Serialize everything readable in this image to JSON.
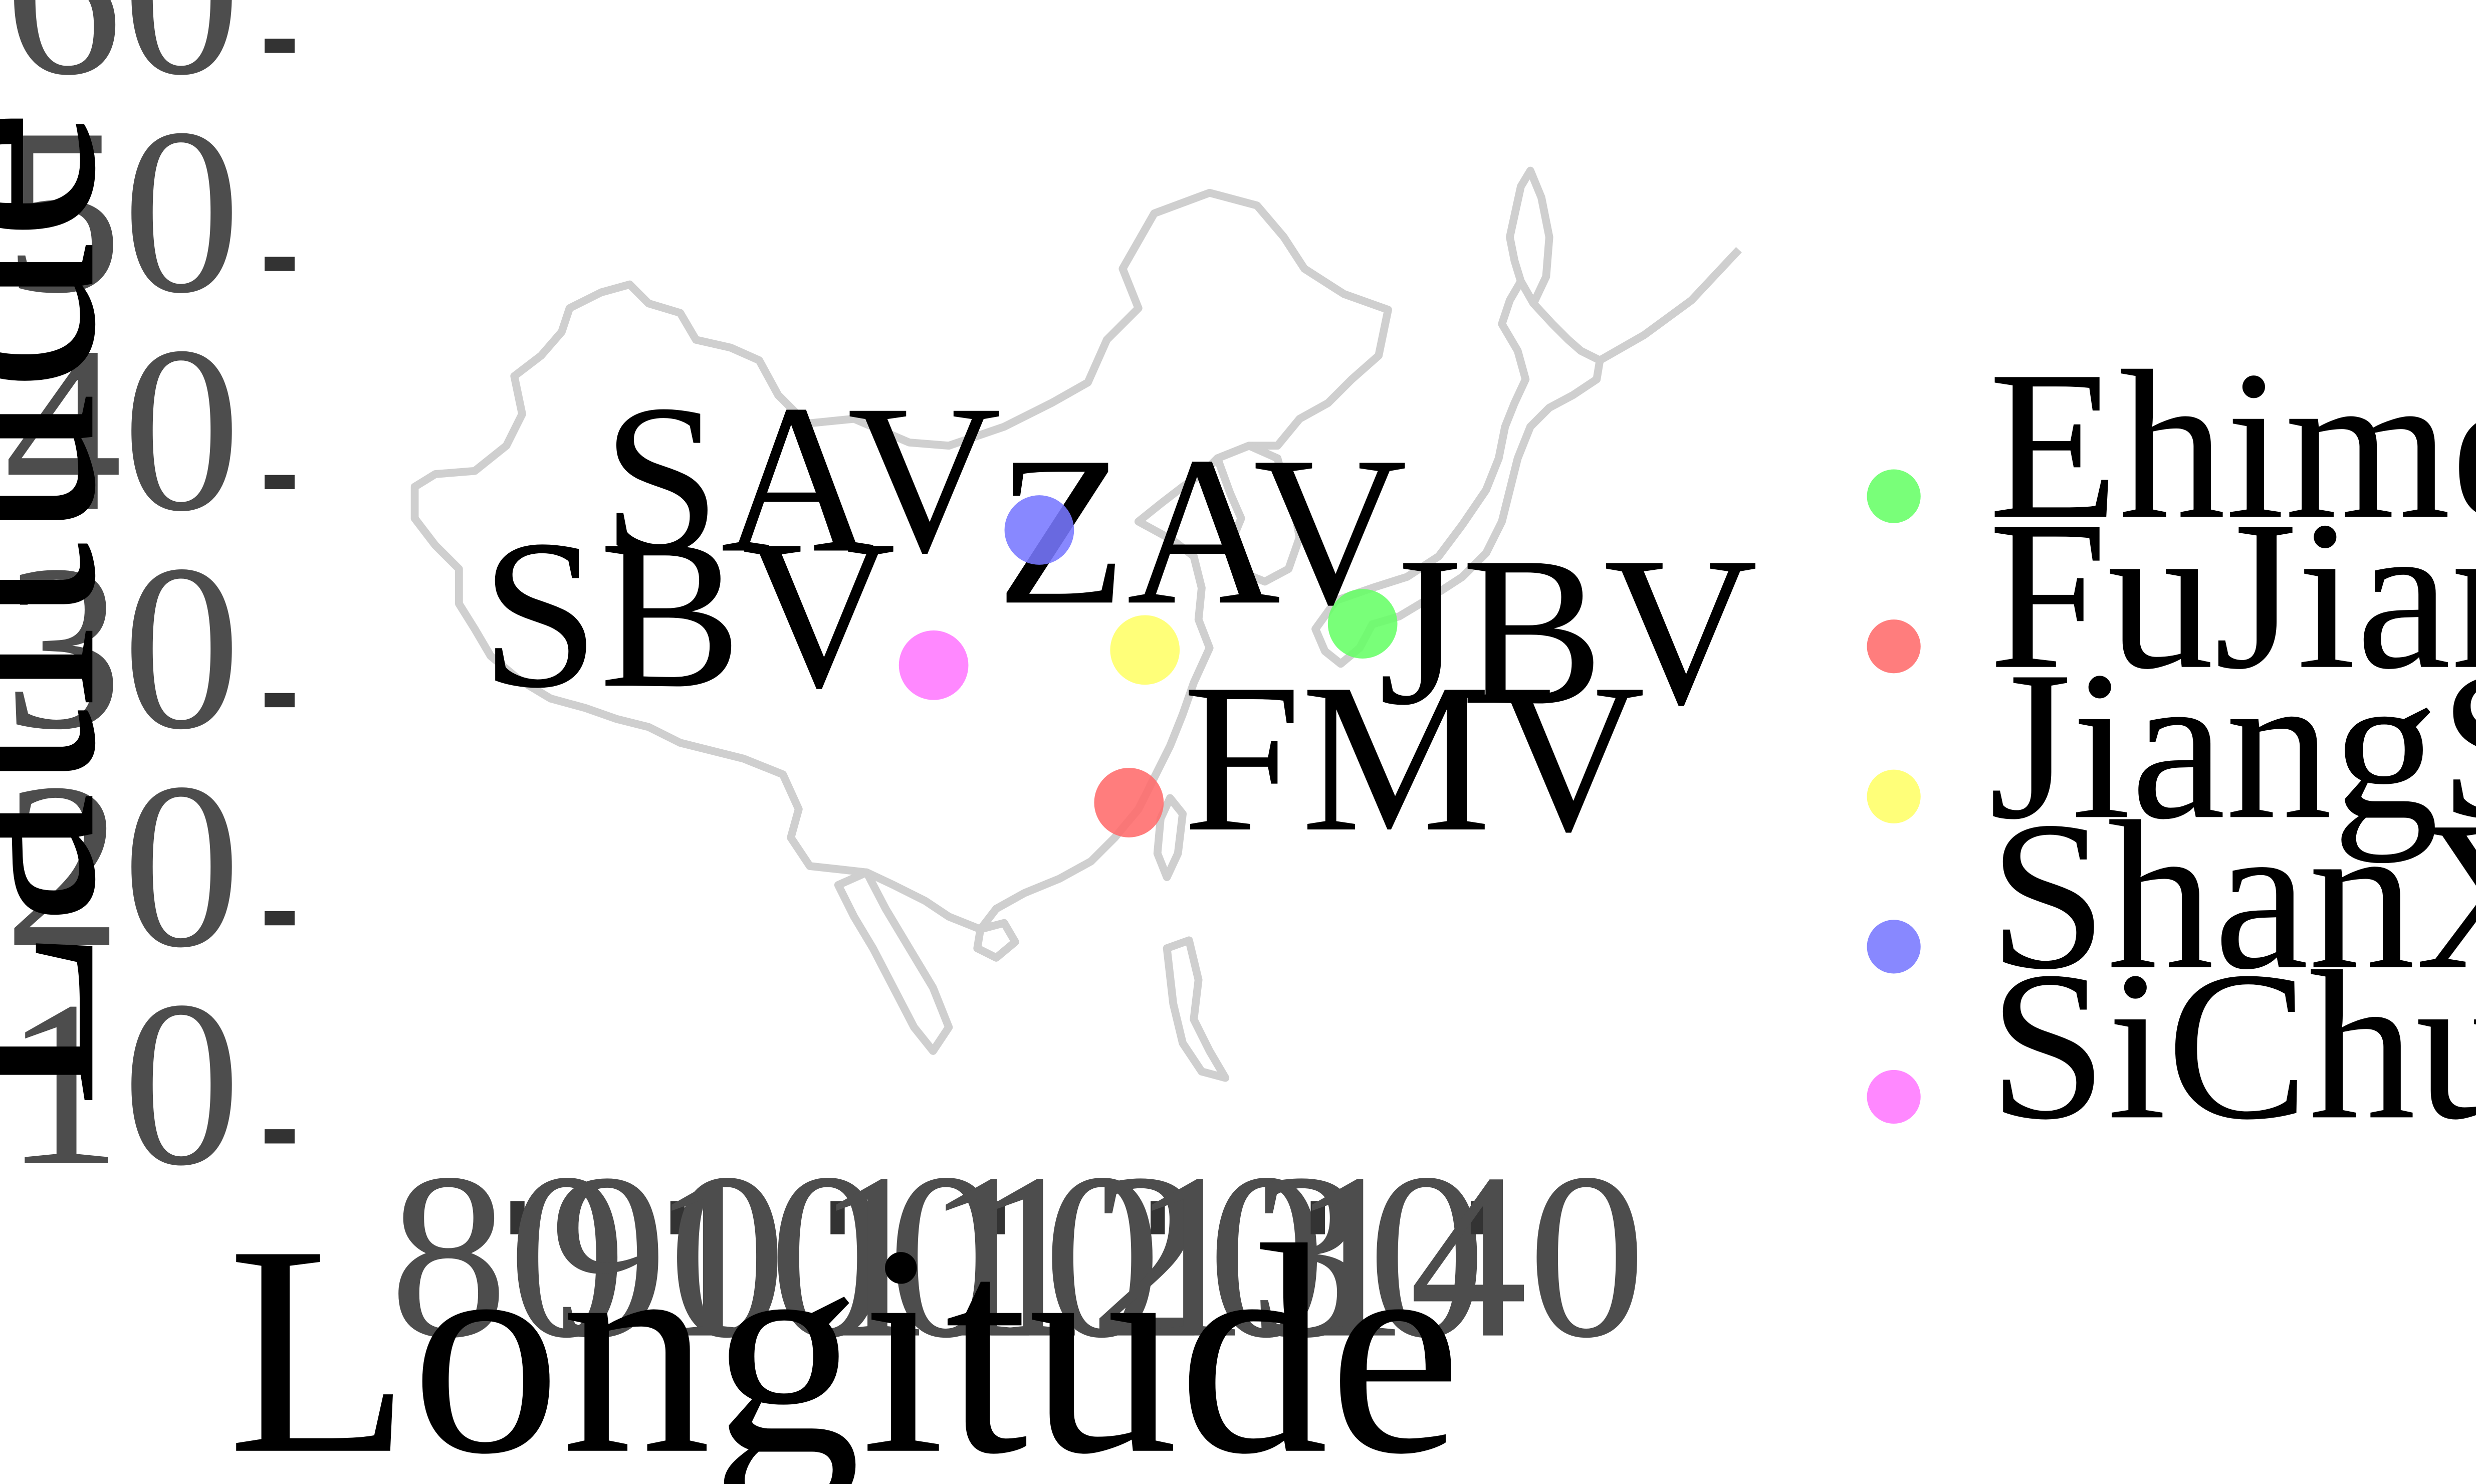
{
  "chart_data": {
    "type": "scatter",
    "xlabel": "Longitude",
    "ylabel": "Latitude",
    "xlim": [
      70,
      152
    ],
    "ylim": [
      8,
      62
    ],
    "x_ticks": [
      "80",
      "90",
      "100",
      "110",
      "120",
      "130",
      "140"
    ],
    "y_ticks": [
      "60",
      "50",
      "40",
      "30",
      "20",
      "10"
    ],
    "grid": false,
    "legend_position": "right",
    "series": [
      {
        "name": "Ehime (Japan)",
        "color": "#66ff66",
        "label": "JBV",
        "label_side": "below-right",
        "x": 132.8,
        "y": 33.5
      },
      {
        "name": "FuJian (China)",
        "color": "#ff6b6b",
        "label": "FMV",
        "label_side": "right",
        "x": 118.2,
        "y": 25.3
      },
      {
        "name": "JiangSu (China)",
        "color": "#ffff66",
        "label": "ZAV",
        "label_side": "above",
        "x": 119.2,
        "y": 32.3
      },
      {
        "name": "ShanXi (China)",
        "color": "#7777ff",
        "label": "SAV",
        "label_side": "left",
        "x": 112.6,
        "y": 37.8
      },
      {
        "name": "SiChuan (China)",
        "color": "#ff77ff",
        "label": "SBV",
        "label_side": "left",
        "x": 106.0,
        "y": 31.6
      }
    ]
  }
}
